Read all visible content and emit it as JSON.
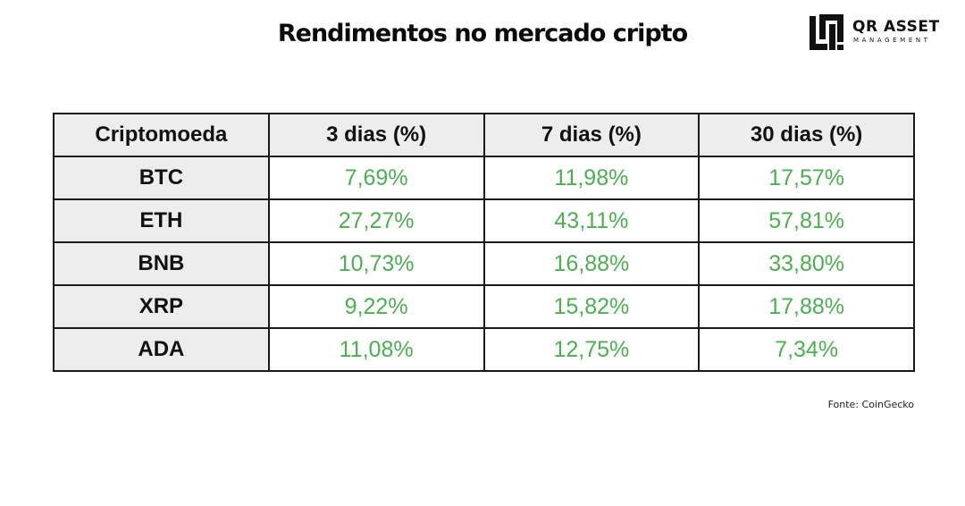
{
  "title": "Rendimentos no mercado cripto",
  "logo": {
    "name": "QR ASSET",
    "subtitle": "MANAGEMENT",
    "icon": "qr-asset-logo-mark"
  },
  "source": "Fonte: CoinGecko",
  "colors": {
    "positive": "#4caf50",
    "header_bg": "#ededed",
    "border": "#1a1a1a"
  },
  "chart_data": {
    "type": "table",
    "title": "Rendimentos no mercado cripto",
    "columns": [
      "Criptomoeda",
      "3 dias (%)",
      "7 dias (%)",
      "30 dias (%)"
    ],
    "rows": [
      [
        "BTC",
        "7,69%",
        "11,98%",
        "17,57%"
      ],
      [
        "ETH",
        "27,27%",
        "43,11%",
        "57,81%"
      ],
      [
        "BNB",
        "10,73%",
        "16,88%",
        "33,80%"
      ],
      [
        "XRP",
        "9,22%",
        "15,82%",
        "17,88%"
      ],
      [
        "ADA",
        "11,08%",
        "12,75%",
        "7,34%"
      ]
    ]
  }
}
